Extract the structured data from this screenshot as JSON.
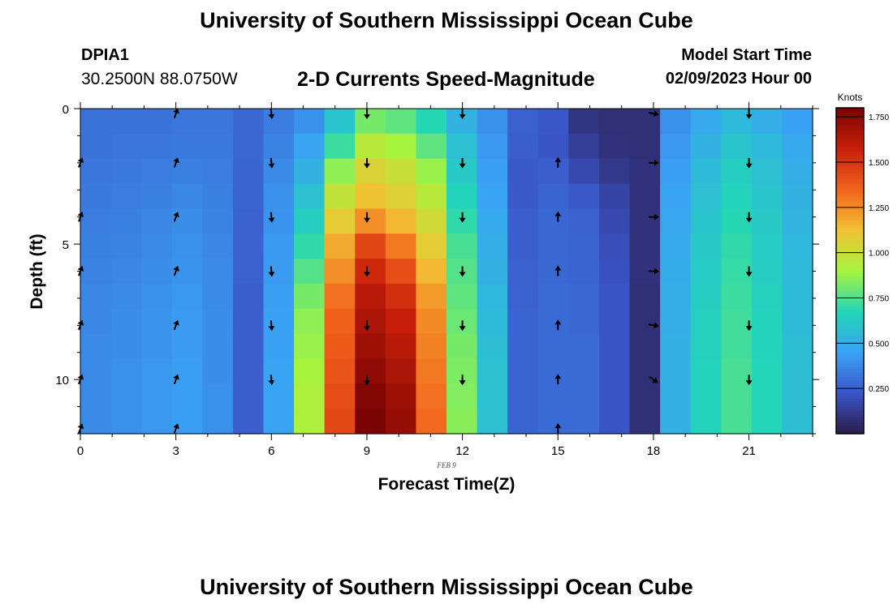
{
  "header": {
    "title": "University of Southern Mississippi Ocean Cube",
    "station_id": "DPIA1",
    "station_location": "30.2500N  88.0750W",
    "subtitle": "2-D Currents Speed-Magnitude",
    "model_start_label": "Model Start Time",
    "model_start_value": "02/09/2023 Hour 00"
  },
  "footer": {
    "next_title": "University of Southern Mississippi Ocean Cube"
  },
  "chart_data": {
    "type": "heatmap",
    "title": "2-D Currents Speed-Magnitude",
    "xlabel": "Forecast Time(Z)",
    "ylabel": "Depth (ft)",
    "date_label": "FEB 9",
    "x": [
      0,
      1,
      2,
      3,
      4,
      5,
      6,
      7,
      8,
      9,
      10,
      11,
      12,
      13,
      14,
      15,
      16,
      17,
      18,
      19,
      20,
      21,
      22,
      23
    ],
    "xlim": [
      0,
      23
    ],
    "x_ticks": [
      0,
      3,
      6,
      9,
      12,
      15,
      18,
      21
    ],
    "y": [
      0,
      1,
      2,
      3,
      4,
      5,
      6,
      7,
      8,
      9,
      10,
      11,
      12
    ],
    "ylim": [
      0,
      12
    ],
    "y_ticks": [
      0,
      5,
      10
    ],
    "units": "Knots",
    "colorbar": {
      "label": "Knots",
      "range": [
        0.0,
        1.8
      ],
      "ticks": [
        "0.250",
        "0.500",
        "0.750",
        "1.000",
        "1.250",
        "1.500",
        "1.750"
      ],
      "colors": [
        "#2b1b48",
        "#3a55c8",
        "#3aa2f5",
        "#22d6b8",
        "#a6f43e",
        "#f2c233",
        "#f2641d",
        "#c81f0a",
        "#7a0403"
      ]
    },
    "rows": [
      [
        0.31,
        0.31,
        0.31,
        0.32,
        0.32,
        0.28,
        0.34,
        0.4,
        0.6,
        0.82,
        0.78,
        0.68,
        0.52,
        0.4,
        0.26,
        0.23,
        0.1,
        0.08,
        0.08,
        0.4,
        0.48,
        0.55,
        0.5,
        0.45
      ],
      [
        0.31,
        0.32,
        0.32,
        0.33,
        0.33,
        0.28,
        0.36,
        0.46,
        0.72,
        0.95,
        0.9,
        0.78,
        0.58,
        0.42,
        0.25,
        0.22,
        0.14,
        0.09,
        0.08,
        0.42,
        0.52,
        0.6,
        0.55,
        0.48
      ],
      [
        0.32,
        0.33,
        0.34,
        0.35,
        0.34,
        0.27,
        0.38,
        0.52,
        0.86,
        1.05,
        1.0,
        0.88,
        0.62,
        0.44,
        0.24,
        0.25,
        0.18,
        0.12,
        0.09,
        0.44,
        0.56,
        0.64,
        0.58,
        0.5
      ],
      [
        0.33,
        0.34,
        0.35,
        0.37,
        0.35,
        0.27,
        0.4,
        0.58,
        0.98,
        1.12,
        1.06,
        0.95,
        0.66,
        0.46,
        0.24,
        0.27,
        0.24,
        0.16,
        0.09,
        0.46,
        0.58,
        0.66,
        0.6,
        0.52
      ],
      [
        0.34,
        0.35,
        0.37,
        0.39,
        0.36,
        0.26,
        0.41,
        0.64,
        1.08,
        1.25,
        1.15,
        1.02,
        0.7,
        0.48,
        0.25,
        0.28,
        0.26,
        0.18,
        0.09,
        0.47,
        0.6,
        0.68,
        0.62,
        0.53
      ],
      [
        0.35,
        0.36,
        0.38,
        0.4,
        0.37,
        0.26,
        0.42,
        0.7,
        1.18,
        1.45,
        1.3,
        1.08,
        0.74,
        0.5,
        0.25,
        0.28,
        0.27,
        0.2,
        0.09,
        0.48,
        0.62,
        0.7,
        0.63,
        0.54
      ],
      [
        0.36,
        0.37,
        0.39,
        0.41,
        0.38,
        0.26,
        0.43,
        0.76,
        1.25,
        1.55,
        1.42,
        1.15,
        0.76,
        0.52,
        0.26,
        0.28,
        0.27,
        0.21,
        0.09,
        0.49,
        0.63,
        0.71,
        0.64,
        0.55
      ],
      [
        0.37,
        0.38,
        0.4,
        0.42,
        0.38,
        0.25,
        0.44,
        0.82,
        1.32,
        1.62,
        1.52,
        1.22,
        0.78,
        0.54,
        0.26,
        0.29,
        0.28,
        0.22,
        0.08,
        0.5,
        0.64,
        0.72,
        0.65,
        0.56
      ],
      [
        0.37,
        0.39,
        0.41,
        0.43,
        0.39,
        0.25,
        0.45,
        0.86,
        1.36,
        1.66,
        1.58,
        1.26,
        0.8,
        0.56,
        0.27,
        0.29,
        0.28,
        0.22,
        0.08,
        0.5,
        0.65,
        0.73,
        0.66,
        0.56
      ],
      [
        0.38,
        0.39,
        0.41,
        0.43,
        0.39,
        0.25,
        0.45,
        0.88,
        1.38,
        1.7,
        1.62,
        1.28,
        0.82,
        0.57,
        0.27,
        0.29,
        0.29,
        0.22,
        0.08,
        0.51,
        0.65,
        0.73,
        0.66,
        0.57
      ],
      [
        0.38,
        0.4,
        0.42,
        0.44,
        0.39,
        0.25,
        0.46,
        0.9,
        1.4,
        1.74,
        1.66,
        1.3,
        0.83,
        0.58,
        0.27,
        0.29,
        0.29,
        0.22,
        0.08,
        0.51,
        0.66,
        0.74,
        0.67,
        0.57
      ],
      [
        0.38,
        0.4,
        0.42,
        0.44,
        0.4,
        0.25,
        0.46,
        0.92,
        1.42,
        1.78,
        1.7,
        1.32,
        0.84,
        0.58,
        0.27,
        0.29,
        0.29,
        0.22,
        0.08,
        0.51,
        0.66,
        0.74,
        0.67,
        0.57
      ],
      [
        0.38,
        0.4,
        0.42,
        0.44,
        0.4,
        0.25,
        0.46,
        0.92,
        1.44,
        1.8,
        1.72,
        1.34,
        0.85,
        0.58,
        0.27,
        0.29,
        0.29,
        0.22,
        0.08,
        0.51,
        0.66,
        0.74,
        0.67,
        0.57
      ]
    ],
    "vectors": {
      "times": [
        0,
        3,
        6,
        9,
        12,
        15,
        18,
        21
      ],
      "depths": [
        0,
        2,
        4,
        6,
        8,
        10,
        12
      ],
      "direction_deg": [
        [
          null,
          20,
          175,
          180,
          180,
          null,
          100,
          180
        ],
        [
          20,
          20,
          175,
          180,
          180,
          0,
          90,
          180
        ],
        [
          20,
          20,
          175,
          180,
          180,
          0,
          90,
          180
        ],
        [
          20,
          20,
          175,
          180,
          180,
          0,
          90,
          180
        ],
        [
          20,
          20,
          175,
          180,
          180,
          0,
          100,
          180
        ],
        [
          20,
          20,
          175,
          180,
          180,
          0,
          125,
          180
        ],
        [
          20,
          20,
          null,
          null,
          null,
          0,
          null,
          null
        ]
      ]
    }
  }
}
